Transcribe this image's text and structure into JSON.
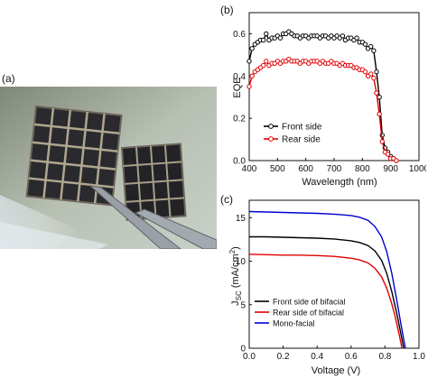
{
  "panels": {
    "a": "(a)",
    "b": "(b)",
    "c": "(c)"
  },
  "photo": {
    "description_icon": "photo-of-flexible-solar-cells-held-by-tweezers"
  },
  "chart_data": [
    {
      "panel": "b",
      "type": "line",
      "title": "",
      "xlabel": "Wavelength (nm)",
      "ylabel": "EQE",
      "xlim": [
        400,
        1000
      ],
      "ylim": [
        0.0,
        0.7
      ],
      "xticks": [
        400,
        500,
        600,
        700,
        800,
        900,
        1000
      ],
      "yticks": [
        0.0,
        0.2,
        0.4,
        0.6
      ],
      "grid": false,
      "legend_position": "bottom-left",
      "series": [
        {
          "name": "Front side",
          "color": "#000000",
          "marker": "open-circle",
          "x": [
            400,
            410,
            420,
            430,
            440,
            450,
            460,
            470,
            480,
            490,
            500,
            510,
            520,
            530,
            540,
            550,
            560,
            570,
            580,
            590,
            600,
            610,
            620,
            630,
            640,
            650,
            660,
            670,
            680,
            690,
            700,
            710,
            720,
            730,
            740,
            750,
            760,
            770,
            780,
            790,
            800,
            810,
            820,
            830,
            840,
            850,
            860,
            870,
            880,
            890,
            900,
            910,
            920
          ],
          "y": [
            0.47,
            0.53,
            0.55,
            0.56,
            0.57,
            0.57,
            0.6,
            0.57,
            0.58,
            0.58,
            0.59,
            0.58,
            0.6,
            0.6,
            0.61,
            0.6,
            0.59,
            0.59,
            0.58,
            0.59,
            0.59,
            0.58,
            0.59,
            0.59,
            0.59,
            0.58,
            0.59,
            0.59,
            0.58,
            0.59,
            0.58,
            0.59,
            0.58,
            0.59,
            0.57,
            0.58,
            0.58,
            0.57,
            0.58,
            0.56,
            0.56,
            0.55,
            0.53,
            0.54,
            0.52,
            0.42,
            0.3,
            0.12,
            0.06,
            0.04,
            0.02,
            0.01,
            0.0
          ]
        },
        {
          "name": "Rear side",
          "color": "#e00000",
          "marker": "open-circle",
          "x": [
            400,
            410,
            420,
            430,
            440,
            450,
            460,
            470,
            480,
            490,
            500,
            510,
            520,
            530,
            540,
            550,
            560,
            570,
            580,
            590,
            600,
            610,
            620,
            630,
            640,
            650,
            660,
            670,
            680,
            690,
            700,
            710,
            720,
            730,
            740,
            750,
            760,
            770,
            780,
            790,
            800,
            810,
            820,
            830,
            840,
            850,
            860,
            870,
            880,
            890,
            900,
            910,
            920
          ],
          "y": [
            0.35,
            0.4,
            0.42,
            0.43,
            0.44,
            0.45,
            0.47,
            0.45,
            0.46,
            0.46,
            0.47,
            0.46,
            0.47,
            0.47,
            0.48,
            0.47,
            0.47,
            0.47,
            0.46,
            0.47,
            0.47,
            0.46,
            0.47,
            0.47,
            0.47,
            0.46,
            0.47,
            0.46,
            0.46,
            0.47,
            0.46,
            0.46,
            0.45,
            0.46,
            0.45,
            0.45,
            0.45,
            0.44,
            0.44,
            0.43,
            0.43,
            0.42,
            0.4,
            0.41,
            0.39,
            0.32,
            0.22,
            0.09,
            0.04,
            0.03,
            0.01,
            0.01,
            0.0
          ]
        }
      ]
    },
    {
      "panel": "c",
      "type": "line",
      "title": "",
      "xlabel": "Voltage (V)",
      "ylabel_main": "J",
      "ylabel_sub": "SC",
      "ylabel_rest": " (mA/cm",
      "ylabel_sup": "2",
      "ylabel_close": ")",
      "xlim": [
        0.0,
        1.0
      ],
      "ylim": [
        0,
        17
      ],
      "xticks": [
        0.0,
        0.2,
        0.4,
        0.6,
        0.8,
        1.0
      ],
      "yticks": [
        0,
        5,
        10,
        15
      ],
      "grid": false,
      "legend_position": "bottom-left",
      "series": [
        {
          "name": "Front side of bifacial",
          "color": "#000000",
          "x": [
            0.0,
            0.1,
            0.2,
            0.3,
            0.4,
            0.5,
            0.6,
            0.65,
            0.7,
            0.74,
            0.78,
            0.81,
            0.84,
            0.87,
            0.89,
            0.91
          ],
          "y": [
            12.8,
            12.8,
            12.75,
            12.7,
            12.65,
            12.55,
            12.35,
            12.15,
            11.8,
            11.2,
            10.1,
            8.6,
            6.5,
            3.9,
            2.0,
            0.0
          ]
        },
        {
          "name": "Rear side of bifacial",
          "color": "#e00000",
          "x": [
            0.0,
            0.1,
            0.2,
            0.3,
            0.4,
            0.5,
            0.6,
            0.65,
            0.7,
            0.74,
            0.78,
            0.81,
            0.84,
            0.86,
            0.88,
            0.9
          ],
          "y": [
            10.8,
            10.75,
            10.7,
            10.7,
            10.65,
            10.55,
            10.35,
            10.15,
            9.8,
            9.2,
            8.2,
            6.9,
            5.1,
            3.6,
            1.9,
            0.0
          ]
        },
        {
          "name": "Mono-facial",
          "color": "#0000d0",
          "x": [
            0.0,
            0.1,
            0.2,
            0.3,
            0.4,
            0.5,
            0.6,
            0.65,
            0.7,
            0.74,
            0.78,
            0.81,
            0.84,
            0.87,
            0.89,
            0.91,
            0.92
          ],
          "y": [
            15.7,
            15.65,
            15.6,
            15.55,
            15.5,
            15.4,
            15.25,
            15.05,
            14.7,
            14.0,
            12.8,
            11.1,
            8.6,
            5.4,
            3.2,
            1.0,
            0.0
          ]
        }
      ]
    }
  ]
}
